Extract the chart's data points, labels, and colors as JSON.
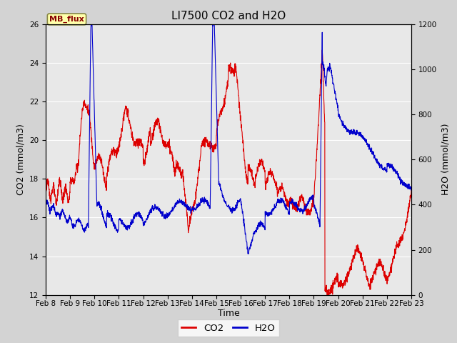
{
  "title": "LI7500 CO2 and H2O",
  "xlabel": "Time",
  "ylabel_left": "CO2 (mmol/m3)",
  "ylabel_right": "H2O (mmol/m3)",
  "ylim_left": [
    12,
    26
  ],
  "ylim_right": [
    0,
    1200
  ],
  "background_color": "#d3d3d3",
  "plot_bg_color": "#e8e8e8",
  "co2_color": "#dd0000",
  "h2o_color": "#0000cc",
  "annotation_text": "MB_flux",
  "annotation_bg": "#ffffaa",
  "annotation_border": "#888844",
  "xtick_labels": [
    "Feb 8",
    "Feb 9",
    "Feb 10",
    "Feb 11",
    "Feb 12",
    "Feb 13",
    "Feb 14",
    "Feb 15",
    "Feb 16",
    "Feb 17",
    "Feb 18",
    "Feb 19",
    "Feb 20",
    "Feb 21",
    "Feb 22",
    "Feb 23"
  ],
  "legend_co2": "CO2",
  "legend_h2o": "H2O",
  "title_fontsize": 11,
  "axis_fontsize": 9,
  "tick_fontsize": 7.5
}
